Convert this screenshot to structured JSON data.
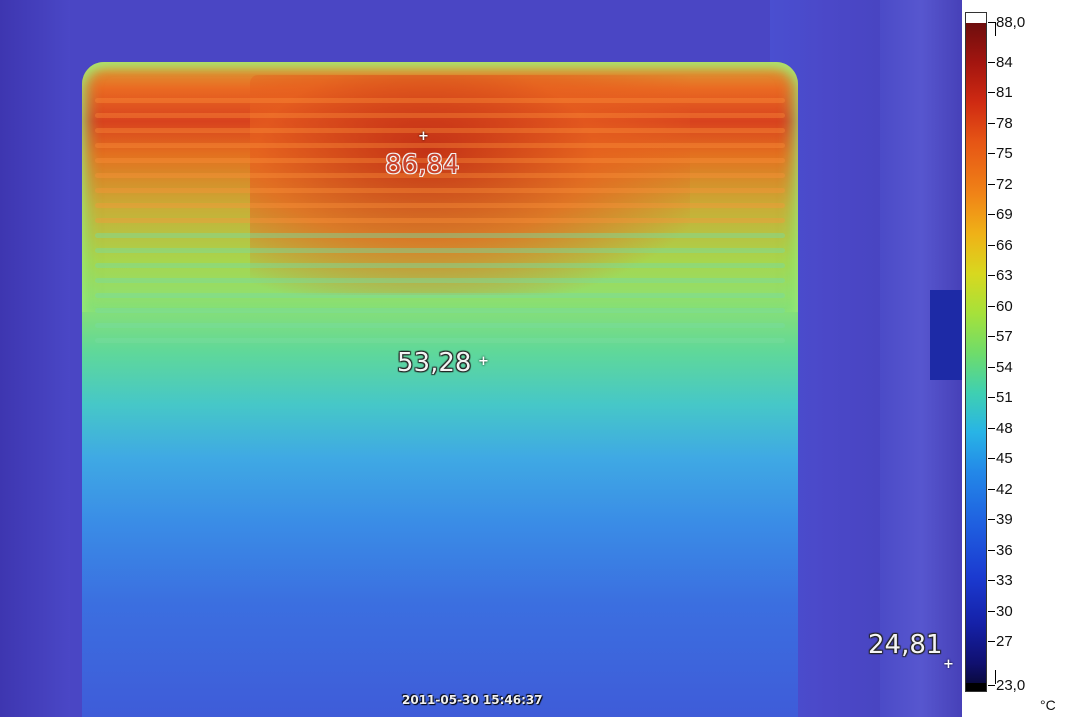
{
  "readouts": [
    {
      "id": "hot",
      "value": "86,84"
    },
    {
      "id": "mid",
      "value": "53,28"
    },
    {
      "id": "cold",
      "value": "24,81"
    }
  ],
  "timestamp": "2011-05-30 15:46:37",
  "scale": {
    "max_label": "88,0",
    "min_label": "23,0",
    "tick_labels": [
      "84",
      "81",
      "78",
      "75",
      "72",
      "69",
      "66",
      "63",
      "60",
      "57",
      "54",
      "51",
      "48",
      "45",
      "42",
      "39",
      "36",
      "33",
      "30",
      "27"
    ],
    "unit": "°C",
    "colors": {
      "top": "#ffffff",
      "hot": "#6e0e0e",
      "mid": "#6fdc6a",
      "cold": "#101070",
      "bottom": "#000000"
    }
  }
}
